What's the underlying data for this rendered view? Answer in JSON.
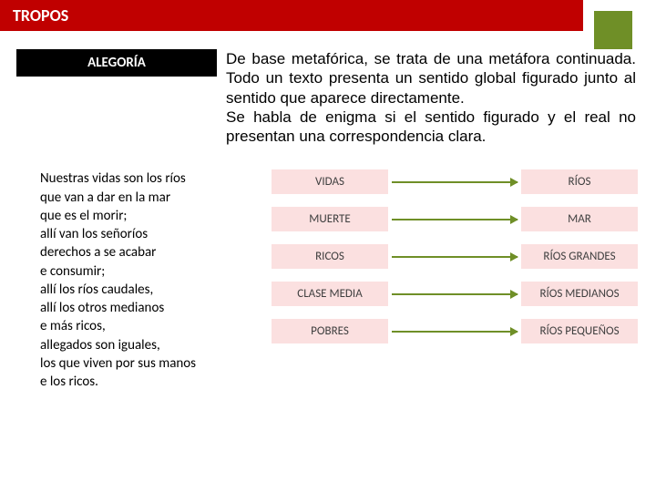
{
  "colors": {
    "title_bg": "#c00000",
    "title_fg": "#ffffff",
    "accent_box": "#6f8f27",
    "subtitle_bg": "#000000",
    "subtitle_fg": "#ffffff",
    "desc_fg": "#000000",
    "label_bg": "#fbe0e0",
    "label_fg": "#404040",
    "arrow": "#6f8f27",
    "page_bg": "#ffffff"
  },
  "title": "TROPOS",
  "subtitle": "ALEGORÍA",
  "description": "De base metafórica, se trata de una metáfora continuada. Todo un texto presenta un sentido global figurado junto al sentido que aparece directamente.\nSe habla de enigma si el sentido figurado y el real no presentan una correspondencia clara.",
  "poem": [
    "Nuestras vidas son los ríos",
    "que van a dar en la mar",
    "que es el morir;",
    "allí van los señoríos",
    "derechos a se acabar",
    "e consumir;",
    "allí los ríos caudales,",
    "allí los otros medianos",
    "e más ricos,",
    "allegados son iguales,",
    "los que viven por sus manos",
    "e los ricos."
  ],
  "mapping": [
    {
      "left": "VIDAS",
      "right": "RÍOS"
    },
    {
      "left": "MUERTE",
      "right": "MAR"
    },
    {
      "left": "RICOS",
      "right": "RÍOS GRANDES"
    },
    {
      "left": "CLASE MEDIA",
      "right": "RÍOS MEDIANOS"
    },
    {
      "left": "POBRES",
      "right": "RÍOS PEQUEÑOS"
    }
  ]
}
